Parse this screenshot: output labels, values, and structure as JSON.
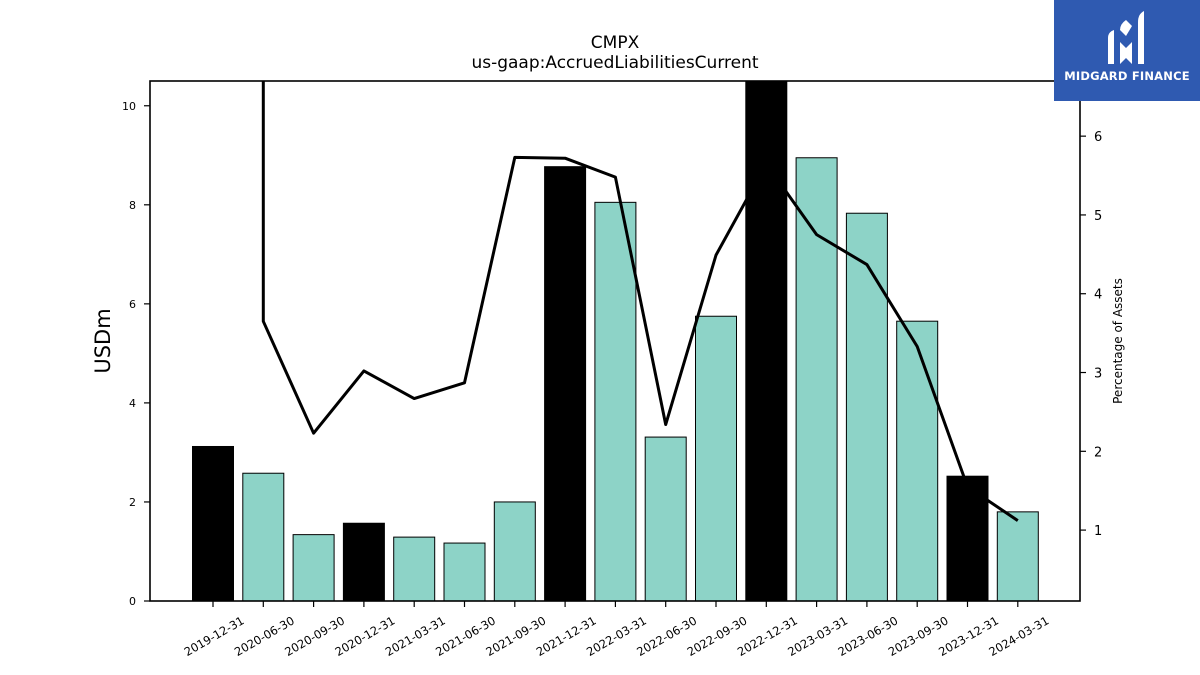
{
  "chart_data": {
    "type": "bar",
    "title": "CMPX",
    "subtitle": "us-gaap:AccruedLiabilitiesCurrent",
    "ylabel": "USDm",
    "y2label": "Percentage of Assets",
    "categories": [
      "2019-12-31",
      "2020-06-30",
      "2020-09-30",
      "2020-12-31",
      "2021-03-31",
      "2021-06-30",
      "2021-09-30",
      "2021-12-31",
      "2022-03-31",
      "2022-06-30",
      "2022-09-30",
      "2022-12-31",
      "2023-03-31",
      "2023-06-30",
      "2023-09-30",
      "2023-12-31",
      "2024-03-31"
    ],
    "series": [
      {
        "type": "bar",
        "axis": "left",
        "values": [
          3.12,
          2.58,
          1.34,
          1.57,
          1.29,
          1.17,
          2.0,
          8.77,
          8.05,
          3.31,
          5.75,
          10.6,
          8.95,
          7.83,
          5.65,
          2.52,
          1.8
        ],
        "colors": [
          "#000000",
          "#8dd3c7",
          "#8dd3c7",
          "#000000",
          "#8dd3c7",
          "#8dd3c7",
          "#8dd3c7",
          "#000000",
          "#8dd3c7",
          "#8dd3c7",
          "#8dd3c7",
          "#000000",
          "#8dd3c7",
          "#8dd3c7",
          "#8dd3c7",
          "#000000",
          "#8dd3c7"
        ]
      },
      {
        "type": "line",
        "axis": "right",
        "color": "#000000",
        "values": [
          null,
          3.65,
          2.23,
          3.02,
          2.67,
          2.87,
          5.73,
          5.72,
          5.48,
          2.34,
          4.49,
          5.65,
          4.75,
          4.37,
          3.33,
          1.55,
          1.12
        ]
      }
    ],
    "line_extends_above_top": true,
    "ylim": [
      0,
      10.5
    ],
    "y2lim": [
      0.1,
      6.7
    ],
    "yticks": [
      0,
      2,
      4,
      6,
      8,
      10
    ],
    "y2ticks": [
      1,
      2,
      3,
      4,
      5,
      6
    ],
    "grid": false
  },
  "logo": {
    "text": "MIDGARD FINANCE",
    "bg_color": "#2f5ab1"
  }
}
